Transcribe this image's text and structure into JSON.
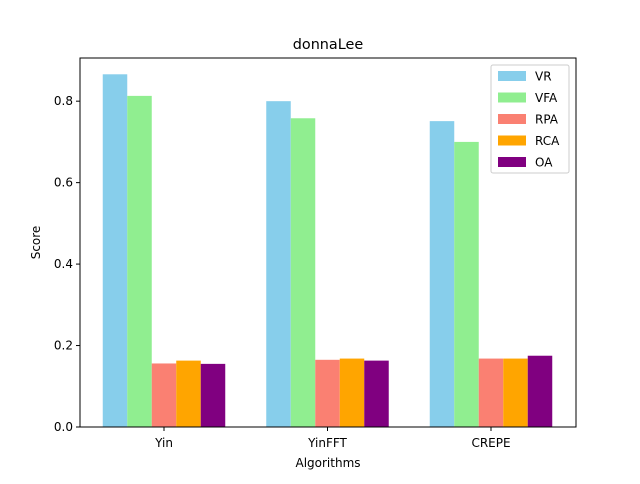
{
  "chart_data": {
    "type": "bar",
    "title": "donnaLee",
    "xlabel": "Algorithms",
    "ylabel": "Score",
    "categories": [
      "Yin",
      "YinFFT",
      "CREPE"
    ],
    "ylim": [
      0,
      0.906
    ],
    "yticks": [
      0.0,
      0.2,
      0.4,
      0.6,
      0.8
    ],
    "ytick_labels": [
      "0.0",
      "0.2",
      "0.4",
      "0.6",
      "0.8"
    ],
    "grid": false,
    "legend_position": "top-right",
    "series": [
      {
        "name": "VR",
        "color": "#87ceeb",
        "values": [
          0.866,
          0.8,
          0.751
        ]
      },
      {
        "name": "VFA",
        "color": "#90ee90",
        "values": [
          0.813,
          0.758,
          0.7
        ]
      },
      {
        "name": "RPA",
        "color": "#fa8072",
        "values": [
          0.156,
          0.165,
          0.168
        ]
      },
      {
        "name": "RCA",
        "color": "#ffa500",
        "values": [
          0.163,
          0.168,
          0.168
        ]
      },
      {
        "name": "OA",
        "color": "#800080",
        "values": [
          0.155,
          0.163,
          0.175
        ]
      }
    ]
  }
}
